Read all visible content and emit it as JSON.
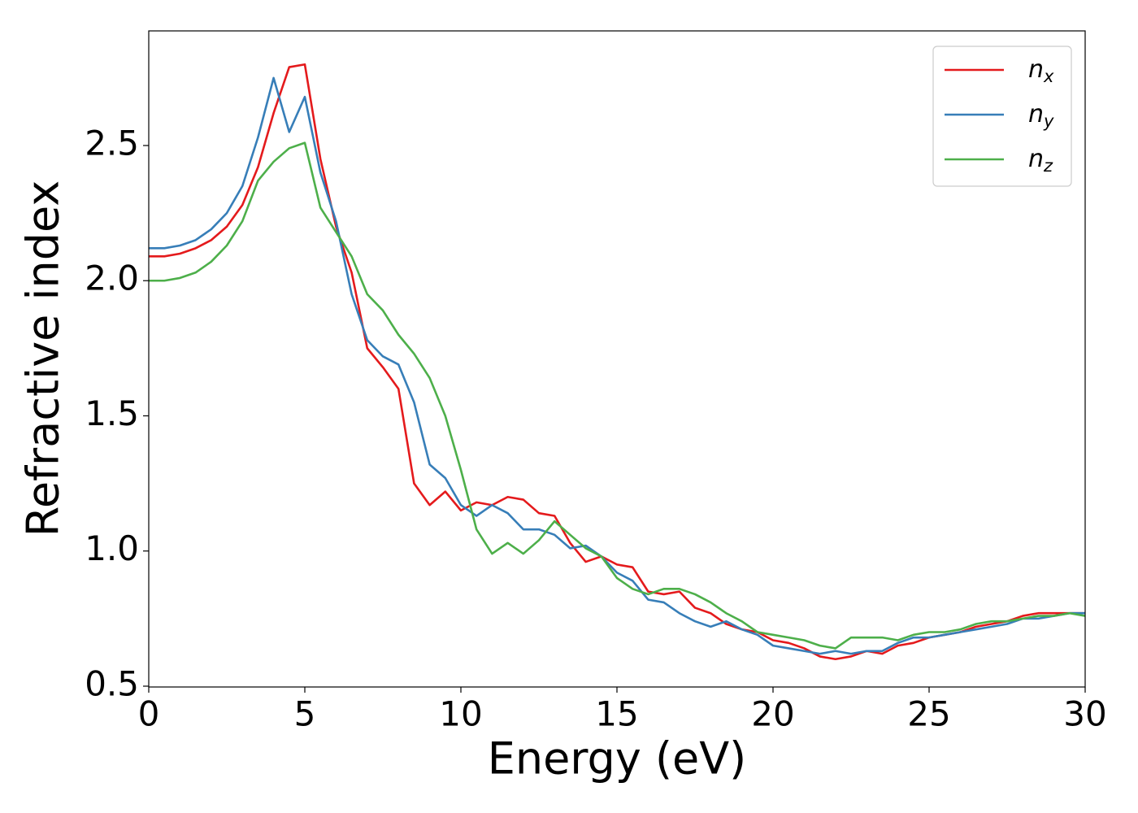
{
  "chart_data": {
    "type": "line",
    "xlabel": "Energy (eV)",
    "ylabel": "Refractive index",
    "x": [
      0,
      0.5,
      1,
      1.5,
      2,
      2.5,
      3,
      3.5,
      4,
      4.5,
      5,
      5.5,
      6,
      6.5,
      7,
      7.5,
      8,
      8.5,
      9,
      9.5,
      10,
      10.5,
      11,
      11.5,
      12,
      12.5,
      13,
      13.5,
      14,
      14.5,
      15,
      15.5,
      16,
      16.5,
      17,
      17.5,
      18,
      18.5,
      19,
      19.5,
      20,
      20.5,
      21,
      21.5,
      22,
      22.5,
      23,
      23.5,
      24,
      24.5,
      25,
      25.5,
      26,
      26.5,
      27,
      27.5,
      28,
      28.5,
      29,
      29.5,
      30
    ],
    "series": [
      {
        "name": "nx",
        "color": "#e41a1c",
        "values": [
          2.09,
          2.09,
          2.1,
          2.12,
          2.15,
          2.2,
          2.28,
          2.42,
          2.62,
          2.79,
          2.8,
          2.45,
          2.2,
          2.03,
          1.75,
          1.68,
          1.6,
          1.25,
          1.17,
          1.22,
          1.15,
          1.18,
          1.17,
          1.2,
          1.19,
          1.14,
          1.13,
          1.03,
          0.96,
          0.98,
          0.95,
          0.94,
          0.85,
          0.84,
          0.85,
          0.79,
          0.77,
          0.73,
          0.71,
          0.7,
          0.67,
          0.66,
          0.64,
          0.61,
          0.6,
          0.61,
          0.63,
          0.62,
          0.65,
          0.66,
          0.68,
          0.69,
          0.7,
          0.72,
          0.73,
          0.74,
          0.76,
          0.77,
          0.77,
          0.77,
          0.77
        ]
      },
      {
        "name": "ny",
        "color": "#377eb8",
        "values": [
          2.12,
          2.12,
          2.13,
          2.15,
          2.19,
          2.25,
          2.35,
          2.53,
          2.75,
          2.55,
          2.68,
          2.4,
          2.22,
          1.95,
          1.78,
          1.72,
          1.69,
          1.55,
          1.32,
          1.27,
          1.17,
          1.13,
          1.17,
          1.14,
          1.08,
          1.08,
          1.06,
          1.01,
          1.02,
          0.98,
          0.92,
          0.89,
          0.82,
          0.81,
          0.77,
          0.74,
          0.72,
          0.74,
          0.71,
          0.69,
          0.65,
          0.64,
          0.63,
          0.62,
          0.63,
          0.62,
          0.63,
          0.63,
          0.66,
          0.68,
          0.68,
          0.69,
          0.7,
          0.71,
          0.72,
          0.73,
          0.75,
          0.75,
          0.76,
          0.77,
          0.77
        ]
      },
      {
        "name": "nz",
        "color": "#4daf4a",
        "values": [
          2.0,
          2.0,
          2.01,
          2.03,
          2.07,
          2.13,
          2.22,
          2.37,
          2.44,
          2.49,
          2.51,
          2.27,
          2.18,
          2.09,
          1.95,
          1.89,
          1.8,
          1.73,
          1.64,
          1.5,
          1.3,
          1.08,
          0.99,
          1.03,
          0.99,
          1.04,
          1.11,
          1.06,
          1.01,
          0.98,
          0.9,
          0.86,
          0.84,
          0.86,
          0.86,
          0.84,
          0.81,
          0.77,
          0.74,
          0.7,
          0.69,
          0.68,
          0.67,
          0.65,
          0.64,
          0.68,
          0.68,
          0.68,
          0.67,
          0.69,
          0.7,
          0.7,
          0.71,
          0.73,
          0.74,
          0.74,
          0.75,
          0.76,
          0.76,
          0.77,
          0.76
        ]
      }
    ],
    "xlim": [
      0,
      30
    ],
    "xticks": [
      0,
      5,
      10,
      15,
      20,
      25,
      30
    ],
    "ylim": [
      0.497,
      2.924
    ],
    "yticks": [
      {
        "value": 0.5,
        "label": "0.5"
      },
      {
        "value": 1.0,
        "label": "1.0"
      },
      {
        "value": 1.5,
        "label": "1.5"
      },
      {
        "value": 2.0,
        "label": "2.0"
      },
      {
        "value": 2.5,
        "label": "2.5"
      }
    ],
    "legend": "upper right",
    "grid": false
  }
}
